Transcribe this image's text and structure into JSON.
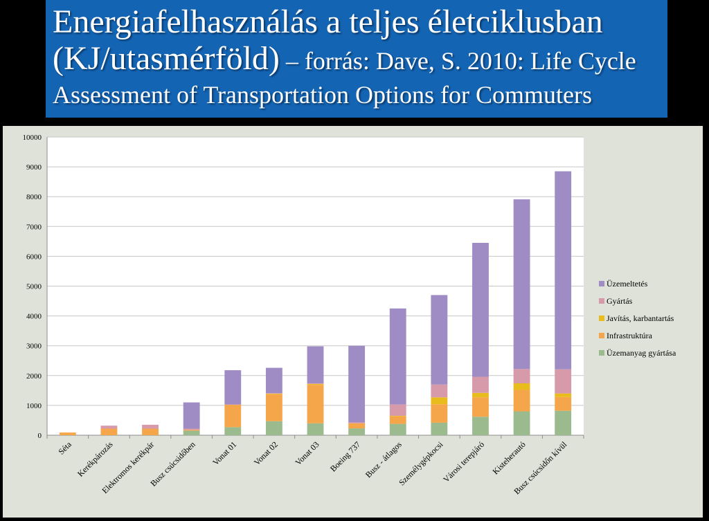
{
  "title": {
    "line1": "Energiafelhasználás a teljes életciklusban",
    "line2_main": "(KJ/utasmérföld)",
    "line2_source": " – forrás: Dave, S. 2010: Life Cycle",
    "line3": "Assessment of Transportation Options for Commuters"
  },
  "chart_data": {
    "type": "bar",
    "stacked": true,
    "categories": [
      "Séta",
      "Kerékpározás",
      "Elektromos kerékpár",
      "Busz csúcsidőben",
      "Vonat 01",
      "Vonat 02",
      "Vonat 03",
      "Boeing 737",
      "Busz - átlagos",
      "Személygépkocsi",
      "Városi terepjáró",
      "Kisteherautó",
      "Busz csúcsidőn kívül"
    ],
    "series": [
      {
        "name": "Üzemanyag gyártása",
        "color": "#9bbb8f",
        "values": [
          0,
          0,
          0,
          150,
          270,
          470,
          400,
          230,
          380,
          420,
          620,
          800,
          820
        ]
      },
      {
        "name": "Infrastruktúra",
        "color": "#f5a54a",
        "values": [
          90,
          220,
          220,
          30,
          750,
          900,
          1290,
          170,
          250,
          620,
          650,
          720,
          460
        ]
      },
      {
        "name": "Javítás, karbantartás",
        "color": "#e8bc1c",
        "values": [
          0,
          0,
          0,
          0,
          0,
          20,
          30,
          0,
          20,
          230,
          150,
          220,
          120
        ]
      },
      {
        "name": "Gyártás",
        "color": "#d79aaa",
        "values": [
          0,
          100,
          130,
          40,
          10,
          20,
          20,
          30,
          380,
          430,
          540,
          480,
          810
        ]
      },
      {
        "name": "Üzemeltetés",
        "color": "#a08cc4",
        "values": [
          0,
          0,
          0,
          880,
          1150,
          850,
          1240,
          2570,
          3220,
          3000,
          4490,
          5690,
          6640
        ]
      }
    ],
    "yticks": [
      0,
      1000,
      2000,
      3000,
      4000,
      5000,
      6000,
      7000,
      8000,
      9000,
      10000
    ],
    "ylim": [
      0,
      10000
    ],
    "grid": true,
    "legend_position": "right"
  }
}
